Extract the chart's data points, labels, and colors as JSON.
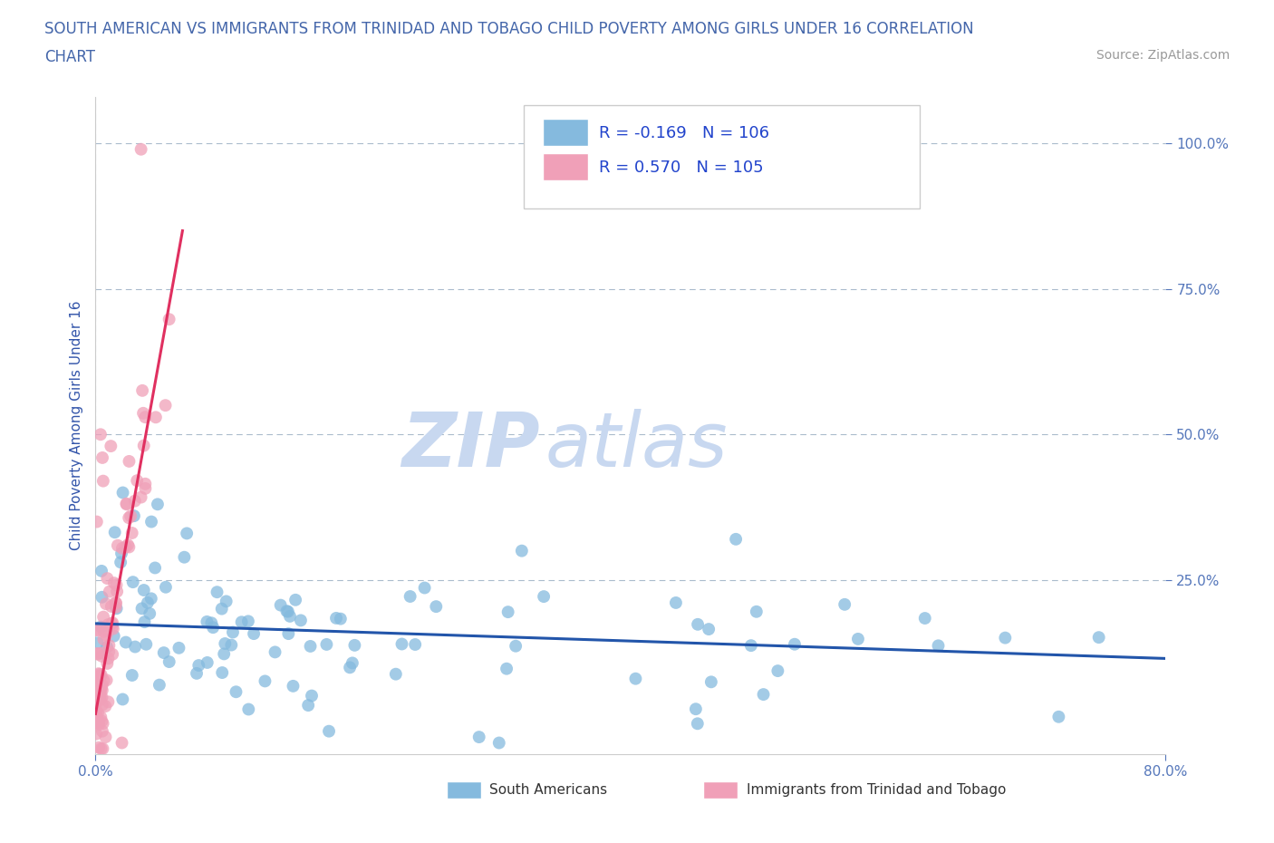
{
  "title_line1": "SOUTH AMERICAN VS IMMIGRANTS FROM TRINIDAD AND TOBAGO CHILD POVERTY AMONG GIRLS UNDER 16 CORRELATION",
  "title_line2": "CHART",
  "source": "Source: ZipAtlas.com",
  "ylabel": "Child Poverty Among Girls Under 16",
  "xlim": [
    0.0,
    0.8
  ],
  "ylim": [
    -0.05,
    1.08
  ],
  "blue_color": "#85BADE",
  "pink_color": "#F0A0B8",
  "blue_line_color": "#2255AA",
  "pink_line_color": "#E03060",
  "R_blue": -0.169,
  "N_blue": 106,
  "R_pink": 0.57,
  "N_pink": 105,
  "watermark_zip": "ZIP",
  "watermark_atlas": "atlas",
  "watermark_color": "#C8D8F0",
  "legend_label_blue": "South Americans",
  "legend_label_pink": "Immigrants from Trinidad and Tobago",
  "title_color": "#4466AA",
  "axis_label_color": "#3355AA",
  "tick_color": "#5577BB",
  "grid_color": "#AABBCC",
  "blue_trend_x0": 0.0,
  "blue_trend_y0": 0.175,
  "blue_trend_x1": 0.8,
  "blue_trend_y1": 0.115,
  "pink_trend_x0": 0.0,
  "pink_trend_y0": 0.02,
  "pink_trend_x1": 0.065,
  "pink_trend_y1": 0.85
}
